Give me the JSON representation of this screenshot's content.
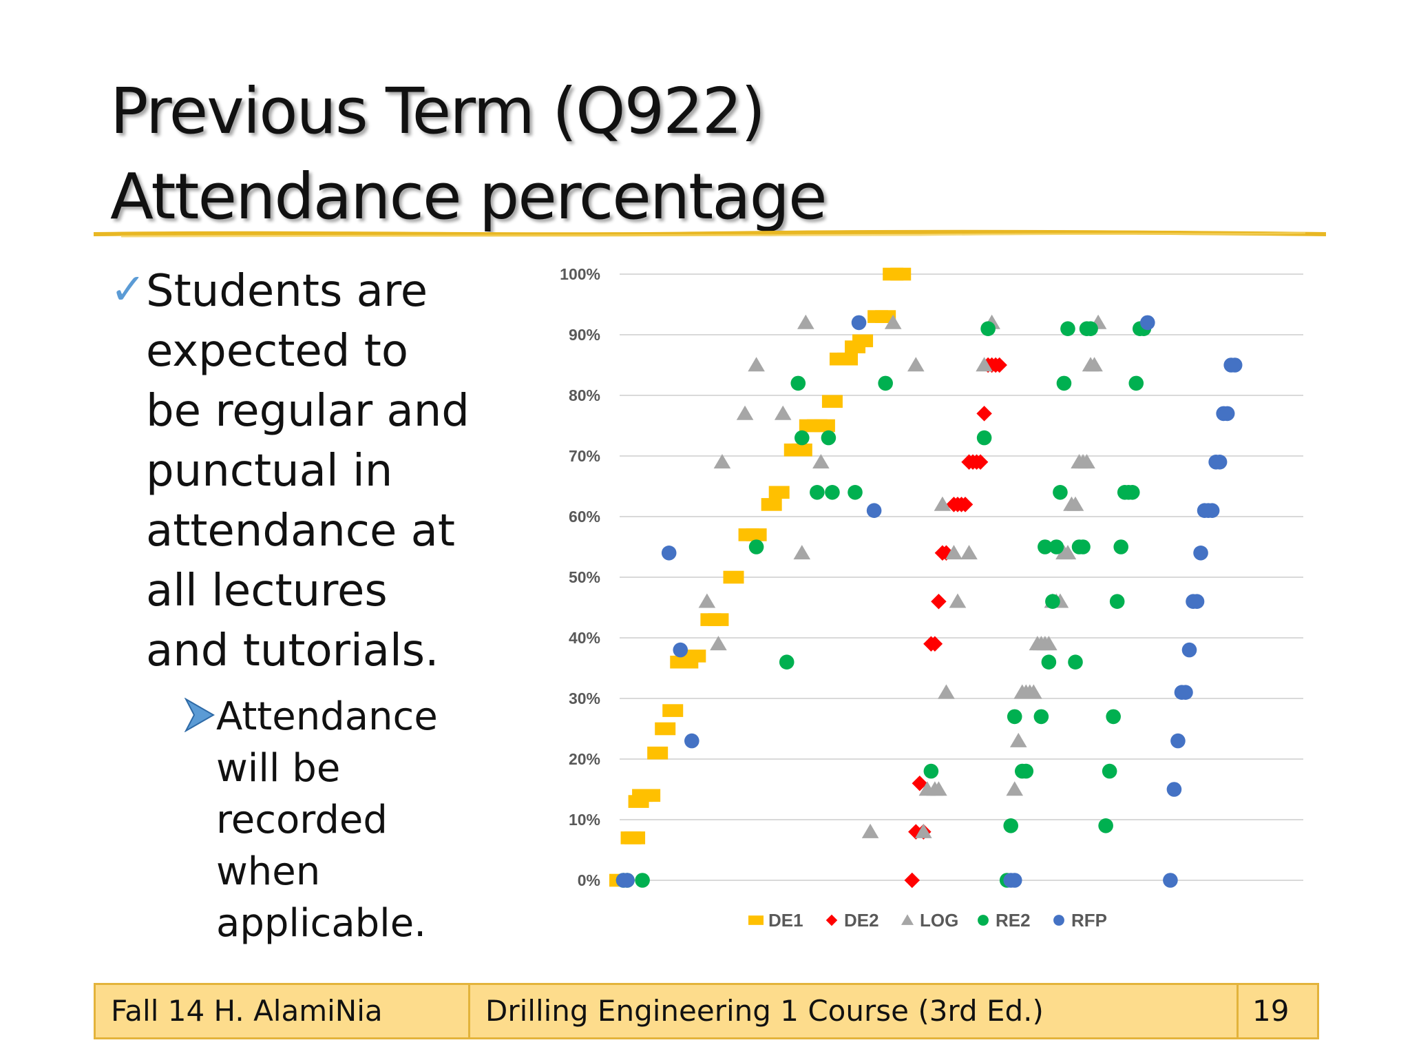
{
  "slide": {
    "title_lines": [
      "Previous Term (Q922)",
      "Attendance percentage"
    ],
    "bullet_main": "Students are\nexpected to\nbe regular and\npunctual in\nattendance at\nall lectures\nand tutorials.",
    "bullet_sub": "Attendance\nwill be\nrecorded\nwhen\napplicable.",
    "icons": {
      "bullet_main": "check-icon",
      "bullet_sub": "arrow-right-icon"
    },
    "colors": {
      "accent_line": "#e8b723",
      "check": "#5b9bd5",
      "footer_bg": "#fddc8c",
      "footer_border": "#e3b33b"
    }
  },
  "footer": {
    "left": "Fall 14 H. AlamiNia",
    "center": "Drilling Engineering 1 Course (3rd Ed.)",
    "page": "19"
  },
  "chart_data": {
    "type": "scatter",
    "y_ticks": [
      "0%",
      "10%",
      "20%",
      "30%",
      "40%",
      "50%",
      "60%",
      "70%",
      "80%",
      "90%",
      "100%"
    ],
    "ylim": [
      0,
      100
    ],
    "xlim": [
      0,
      180
    ],
    "grid": true,
    "legend_position": "bottom",
    "series": [
      {
        "name": "DE1",
        "marker": "square",
        "color": "#ffc000",
        "points": [
          [
            0,
            0
          ],
          [
            3,
            7
          ],
          [
            4,
            7
          ],
          [
            5,
            13
          ],
          [
            6,
            14
          ],
          [
            8,
            14
          ],
          [
            10,
            21
          ],
          [
            12,
            25
          ],
          [
            14,
            28
          ],
          [
            16,
            36
          ],
          [
            18,
            36
          ],
          [
            20,
            37
          ],
          [
            24,
            43
          ],
          [
            26,
            43
          ],
          [
            30,
            50
          ],
          [
            34,
            57
          ],
          [
            36,
            57
          ],
          [
            40,
            62
          ],
          [
            42,
            64
          ],
          [
            46,
            71
          ],
          [
            48,
            71
          ],
          [
            50,
            75
          ],
          [
            52,
            75
          ],
          [
            54,
            75
          ],
          [
            56,
            79
          ],
          [
            58,
            86
          ],
          [
            60,
            86
          ],
          [
            62,
            88
          ],
          [
            64,
            89
          ],
          [
            68,
            93
          ],
          [
            70,
            93
          ],
          [
            72,
            100
          ],
          [
            74,
            100
          ]
        ]
      },
      {
        "name": "DE2",
        "marker": "diamond",
        "color": "#ff0000",
        "points": [
          [
            77,
            0
          ],
          [
            78,
            8
          ],
          [
            80,
            8
          ],
          [
            79,
            16
          ],
          [
            82,
            39
          ],
          [
            83,
            39
          ],
          [
            84,
            46
          ],
          [
            85,
            54
          ],
          [
            86,
            54
          ],
          [
            88,
            62
          ],
          [
            89,
            62
          ],
          [
            90,
            62
          ],
          [
            91,
            62
          ],
          [
            92,
            69
          ],
          [
            93,
            69
          ],
          [
            94,
            69
          ],
          [
            95,
            69
          ],
          [
            96,
            77
          ],
          [
            97,
            85
          ],
          [
            98,
            85
          ],
          [
            99,
            85
          ],
          [
            100,
            85
          ]
        ]
      },
      {
        "name": "LOG",
        "marker": "triangle",
        "color": "#a6a6a6",
        "points": [
          [
            23,
            46
          ],
          [
            26,
            39
          ],
          [
            27,
            69
          ],
          [
            33,
            77
          ],
          [
            36,
            85
          ],
          [
            43,
            77
          ],
          [
            48,
            54
          ],
          [
            49,
            92
          ],
          [
            53,
            69
          ],
          [
            66,
            8
          ],
          [
            72,
            92
          ],
          [
            78,
            85
          ],
          [
            80,
            8
          ],
          [
            81,
            15
          ],
          [
            83,
            15
          ],
          [
            84,
            15
          ],
          [
            85,
            62
          ],
          [
            86,
            31
          ],
          [
            88,
            54
          ],
          [
            89,
            46
          ],
          [
            92,
            54
          ],
          [
            96,
            85
          ],
          [
            98,
            92
          ],
          [
            104,
            15
          ],
          [
            105,
            23
          ],
          [
            106,
            31
          ],
          [
            107,
            31
          ],
          [
            108,
            31
          ],
          [
            109,
            31
          ],
          [
            110,
            39
          ],
          [
            111,
            39
          ],
          [
            112,
            39
          ],
          [
            113,
            39
          ],
          [
            114,
            46
          ],
          [
            115,
            46
          ],
          [
            116,
            46
          ],
          [
            117,
            54
          ],
          [
            118,
            54
          ],
          [
            119,
            62
          ],
          [
            120,
            62
          ],
          [
            121,
            69
          ],
          [
            122,
            69
          ],
          [
            123,
            69
          ],
          [
            124,
            85
          ],
          [
            125,
            85
          ],
          [
            126,
            92
          ]
        ]
      },
      {
        "name": "RE2",
        "marker": "circle",
        "color": "#00b050",
        "points": [
          [
            1,
            0
          ],
          [
            2,
            0
          ],
          [
            6,
            0
          ],
          [
            36,
            55
          ],
          [
            44,
            36
          ],
          [
            47,
            82
          ],
          [
            48,
            73
          ],
          [
            52,
            64
          ],
          [
            55,
            73
          ],
          [
            56,
            64
          ],
          [
            62,
            64
          ],
          [
            70,
            82
          ],
          [
            82,
            18
          ],
          [
            96,
            73
          ],
          [
            97,
            91
          ],
          [
            102,
            0
          ],
          [
            103,
            9
          ],
          [
            104,
            27
          ],
          [
            106,
            18
          ],
          [
            107,
            18
          ],
          [
            111,
            27
          ],
          [
            112,
            55
          ],
          [
            113,
            36
          ],
          [
            114,
            46
          ],
          [
            115,
            55
          ],
          [
            116,
            64
          ],
          [
            117,
            82
          ],
          [
            118,
            91
          ],
          [
            120,
            36
          ],
          [
            121,
            55
          ],
          [
            122,
            55
          ],
          [
            123,
            91
          ],
          [
            124,
            91
          ],
          [
            128,
            9
          ],
          [
            129,
            18
          ],
          [
            130,
            27
          ],
          [
            131,
            46
          ],
          [
            132,
            55
          ],
          [
            133,
            64
          ],
          [
            134,
            64
          ],
          [
            135,
            64
          ],
          [
            136,
            82
          ],
          [
            137,
            91
          ],
          [
            138,
            91
          ]
        ]
      },
      {
        "name": "RFP",
        "marker": "circle",
        "color": "#4472c4",
        "points": [
          [
            1,
            0
          ],
          [
            2,
            0
          ],
          [
            13,
            54
          ],
          [
            16,
            38
          ],
          [
            19,
            23
          ],
          [
            63,
            92
          ],
          [
            67,
            61
          ],
          [
            103,
            0
          ],
          [
            104,
            0
          ],
          [
            145,
            0
          ],
          [
            146,
            15
          ],
          [
            147,
            23
          ],
          [
            148,
            31
          ],
          [
            149,
            31
          ],
          [
            150,
            38
          ],
          [
            151,
            46
          ],
          [
            152,
            46
          ],
          [
            153,
            54
          ],
          [
            154,
            61
          ],
          [
            155,
            61
          ],
          [
            156,
            61
          ],
          [
            157,
            69
          ],
          [
            158,
            69
          ],
          [
            159,
            77
          ],
          [
            160,
            77
          ],
          [
            161,
            85
          ],
          [
            162,
            85
          ],
          [
            139,
            92
          ]
        ]
      }
    ]
  }
}
